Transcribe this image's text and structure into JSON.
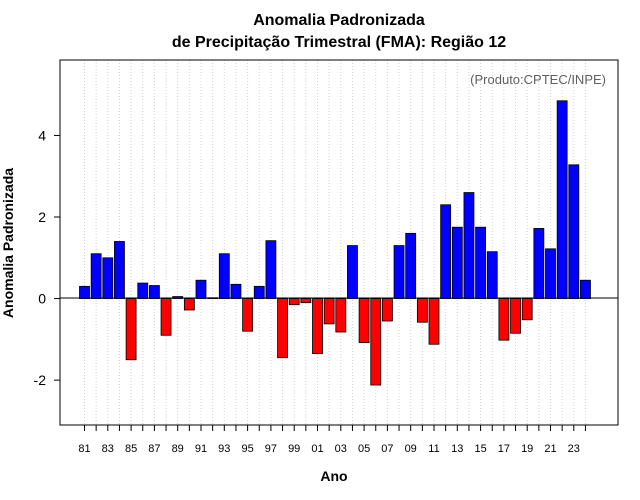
{
  "chart_data": {
    "type": "bar",
    "title": "Anomalia Padronizada",
    "subtitle": "de Precipitação Trimestral (FMA): Região 12",
    "xlabel": "Ano",
    "ylabel": "Anomalia Padronizada",
    "credit": "(Produto:CPTEC/INPE)",
    "ylim": [
      -3.1,
      5.85
    ],
    "yticks": [
      -2,
      0,
      2,
      4
    ],
    "grid": "vertical-dotted",
    "positive_color": "#0000FF",
    "negative_color": "#FF0000",
    "categories": [
      "81",
      "82",
      "83",
      "84",
      "85",
      "86",
      "87",
      "88",
      "89",
      "90",
      "91",
      "92",
      "93",
      "94",
      "95",
      "96",
      "97",
      "98",
      "99",
      "00",
      "01",
      "02",
      "03",
      "04",
      "05",
      "06",
      "07",
      "08",
      "09",
      "10",
      "11",
      "12",
      "13",
      "14",
      "15",
      "16",
      "17",
      "18",
      "19",
      "20",
      "21",
      "22",
      "23",
      "24"
    ],
    "xtick_labels": [
      "81",
      "83",
      "85",
      "87",
      "89",
      "91",
      "93",
      "95",
      "97",
      "99",
      "01",
      "03",
      "05",
      "07",
      "09",
      "11",
      "13",
      "15",
      "17",
      "19",
      "21",
      "23"
    ],
    "values": [
      0.3,
      1.1,
      1.0,
      1.4,
      -1.5,
      0.38,
      0.32,
      -0.9,
      0.05,
      -0.28,
      0.45,
      0.02,
      1.1,
      0.35,
      -0.8,
      0.3,
      1.42,
      -1.45,
      -0.15,
      -0.1,
      -1.35,
      -0.62,
      -0.82,
      1.3,
      -1.08,
      -2.12,
      -0.55,
      1.3,
      1.6,
      -0.58,
      -1.12,
      2.3,
      1.75,
      2.6,
      1.75,
      1.15,
      -1.02,
      -0.85,
      -0.52,
      1.72,
      1.22,
      4.85,
      3.28,
      0.45
    ]
  }
}
